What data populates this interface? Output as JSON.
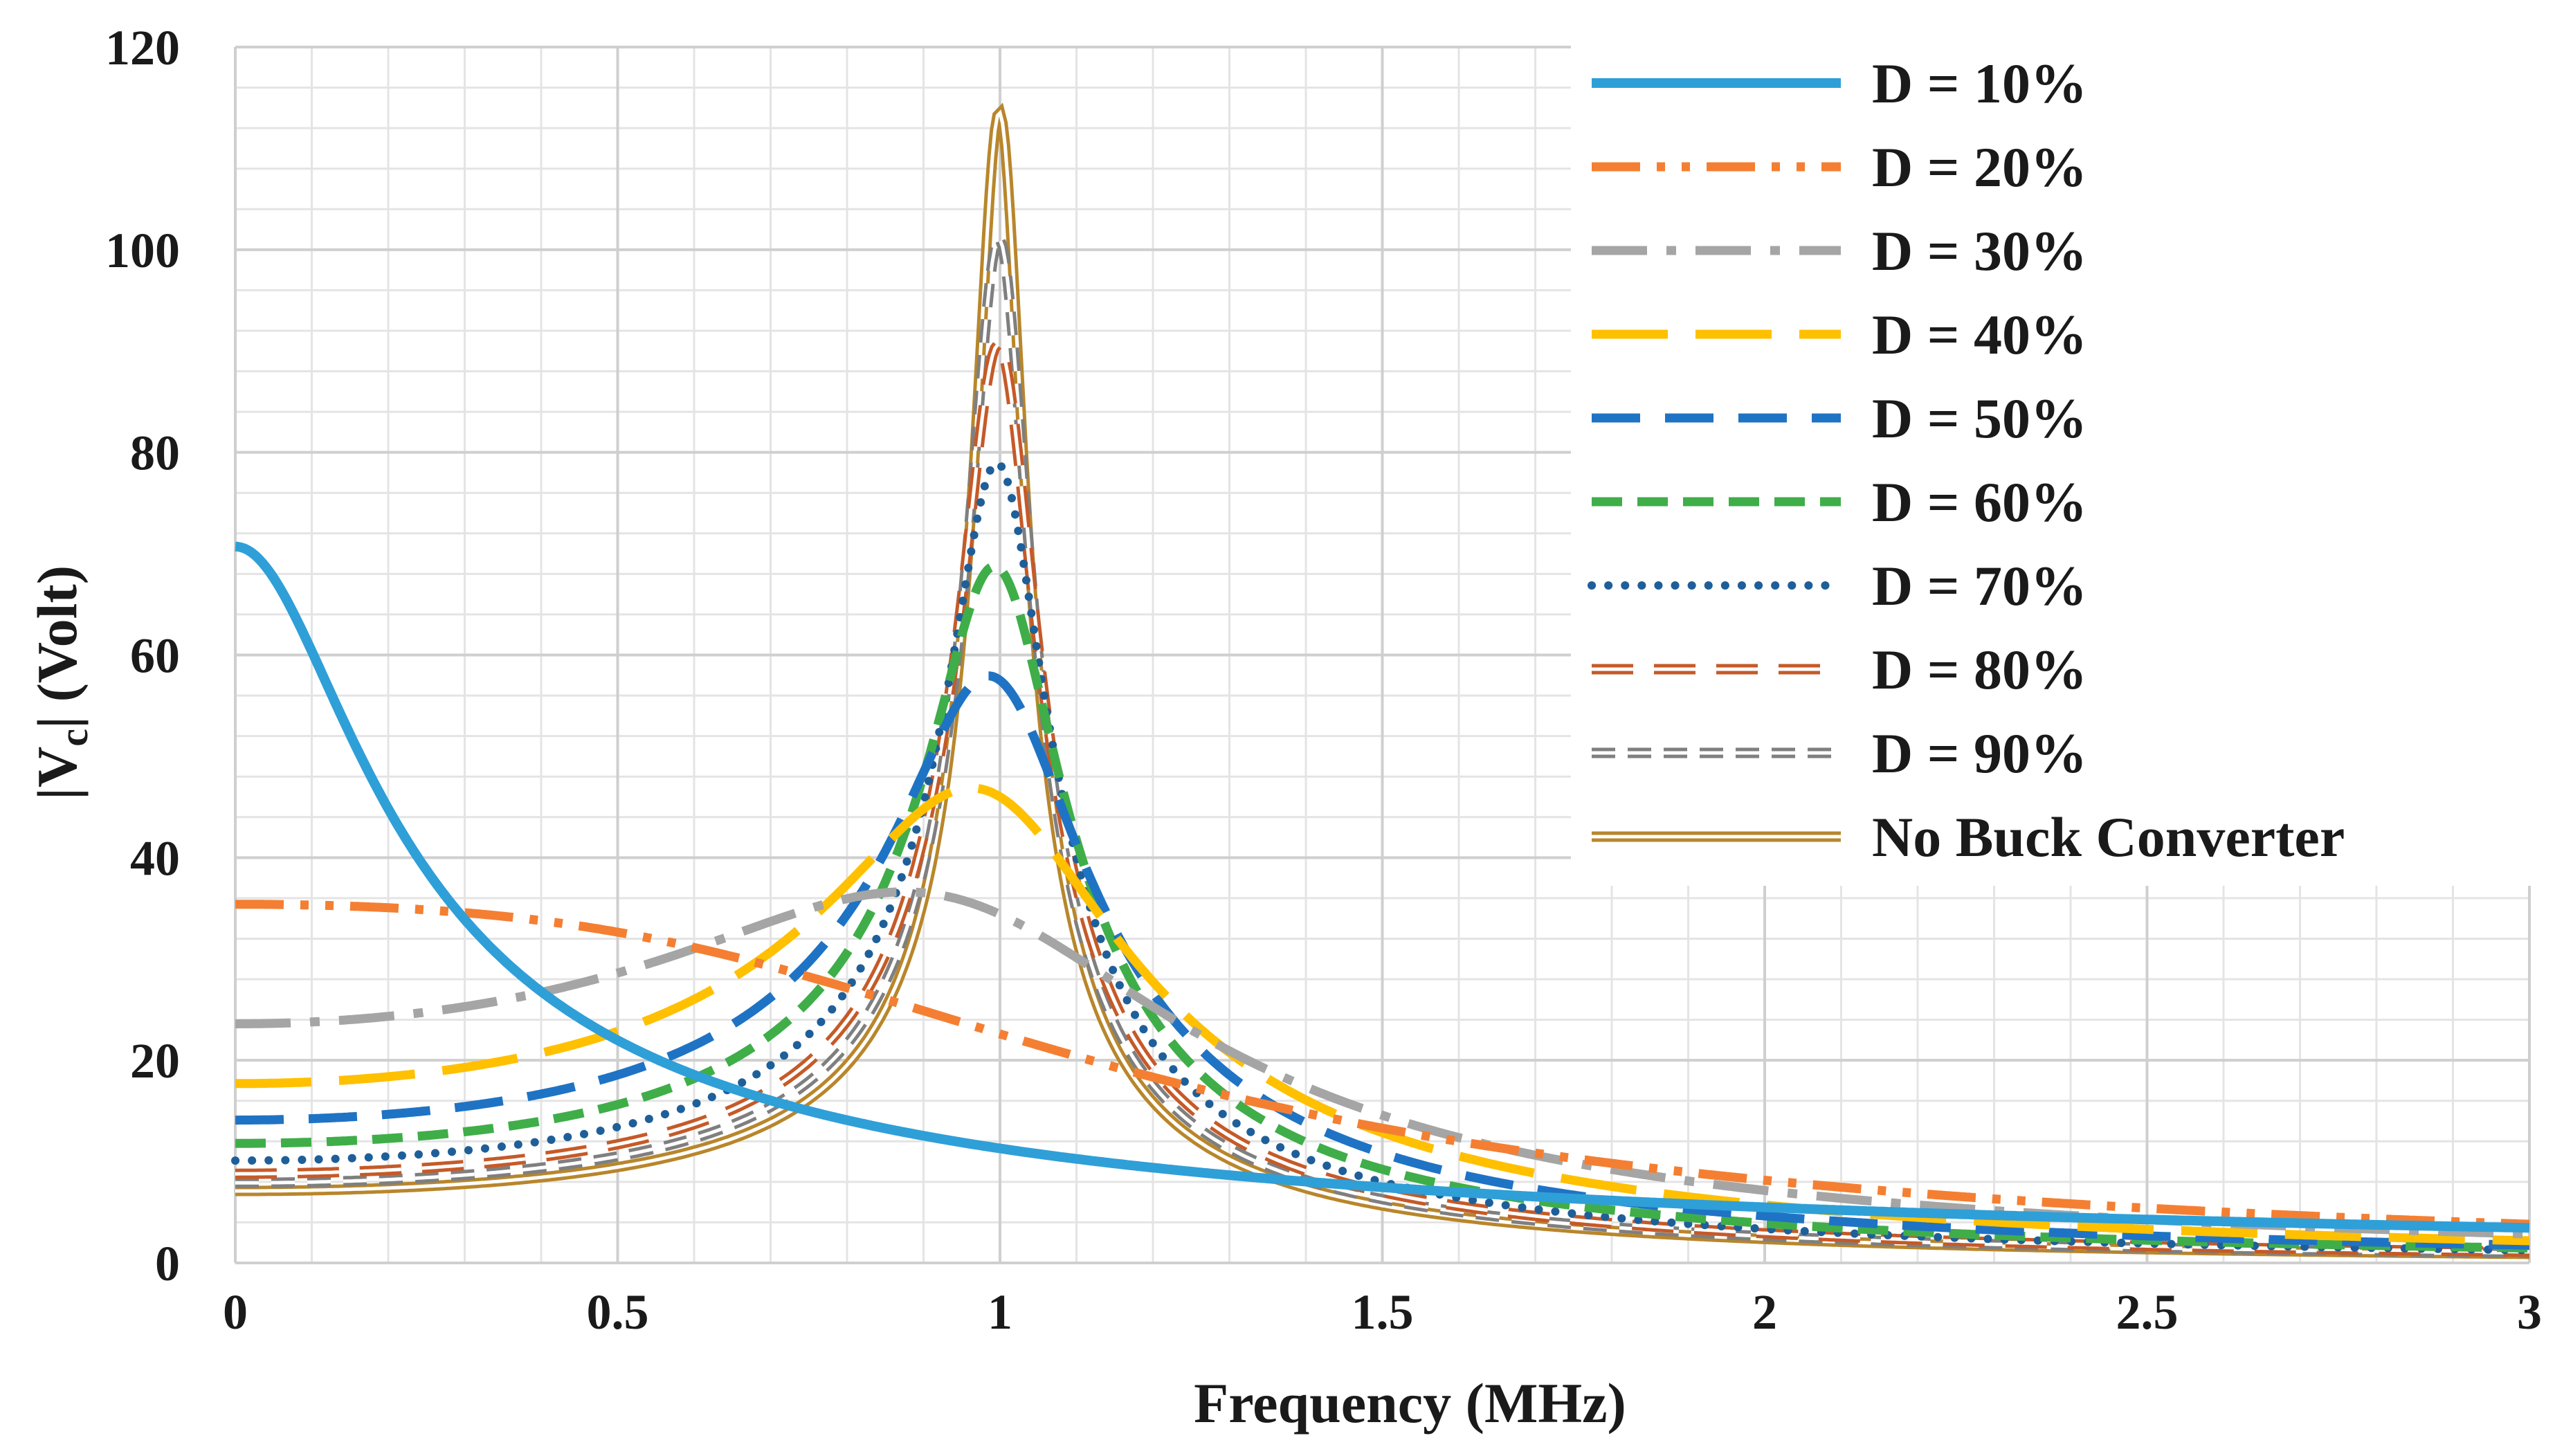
{
  "chart_data": {
    "type": "line",
    "xlabel": "Frequency (MHz)",
    "ylabel_main": "|V",
    "ylabel_sub": "c",
    "ylabel_tail": "|  (Volt)",
    "xlim": [
      0,
      3
    ],
    "ylim": [
      0,
      120
    ],
    "xticks": [
      0,
      0.5,
      1,
      1.5,
      2,
      2.5,
      3
    ],
    "xtick_labels": [
      "0",
      "0.5",
      "1",
      "1.5",
      "2",
      "2.5",
      "3"
    ],
    "yticks": [
      0,
      20,
      40,
      60,
      80,
      100,
      120
    ],
    "ytick_labels": [
      "0",
      "20",
      "40",
      "60",
      "80",
      "100",
      "120"
    ],
    "grid": true,
    "legend_position": "top-right",
    "resonance_mhz": 1.0,
    "series": [
      {
        "name": "D = 10%",
        "color": "#2f9fd8",
        "dc_value": 70.7,
        "peak_value": 11.3,
        "style": "solid-thick"
      },
      {
        "name": "D = 20%",
        "color": "#f47f32",
        "dc_value": 35.4,
        "peak_value": 22.6,
        "style": "dash-dot-dot"
      },
      {
        "name": "D = 30%",
        "color": "#a5a5a5",
        "dc_value": 23.6,
        "peak_value": 34.4,
        "style": "long-dash-dot"
      },
      {
        "name": "D = 40%",
        "color": "#ffc000",
        "dc_value": 17.7,
        "peak_value": 46.0,
        "style": "long-dash"
      },
      {
        "name": "D = 50%",
        "color": "#1f73c4",
        "dc_value": 14.1,
        "peak_value": 57.5,
        "style": "dash"
      },
      {
        "name": "D = 60%",
        "color": "#3fae49",
        "dc_value": 11.8,
        "peak_value": 68.5,
        "style": "short-dash"
      },
      {
        "name": "D = 70%",
        "color": "#1f5f99",
        "dc_value": 10.1,
        "peak_value": 78.8,
        "style": "dot"
      },
      {
        "name": "D = 80%",
        "color": "#c55a28",
        "dc_value": 8.8,
        "peak_value": 90.5,
        "style": "double-dash"
      },
      {
        "name": "D = 90%",
        "color": "#7f7f7f",
        "dc_value": 7.9,
        "peak_value": 101.0,
        "style": "double-short-dash"
      },
      {
        "name": "No Buck Converter",
        "color": "#b8862b",
        "dc_value": 7.1,
        "peak_value": 113.5,
        "style": "double-solid"
      }
    ]
  }
}
